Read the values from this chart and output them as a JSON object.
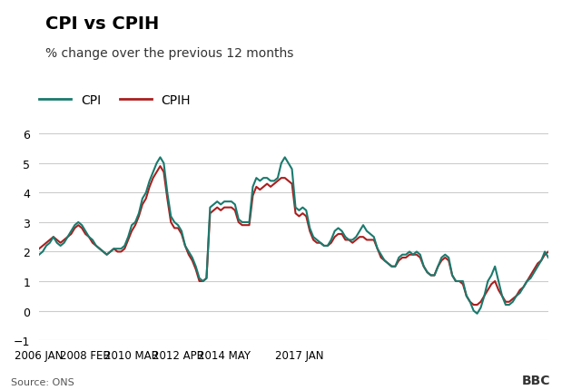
{
  "title": "CPI vs CPIH",
  "subtitle": "% change over the previous 12 months",
  "source": "Source: ONS",
  "bbc_text": "BBC",
  "cpi_color": "#1a7a6e",
  "cpih_color": "#aa1f1f",
  "background_color": "#ffffff",
  "grid_color": "#cccccc",
  "ylim": [
    -1,
    6
  ],
  "yticks": [
    -1,
    0,
    1,
    2,
    3,
    4,
    5,
    6
  ],
  "xtick_labels": [
    "2006 JAN",
    "2008 FEB",
    "2010 MAR",
    "2012 APR",
    "2014 MAY",
    "2017 JAN"
  ],
  "title_fontsize": 14,
  "subtitle_fontsize": 10,
  "legend_fontsize": 10,
  "cpi_data": [
    1.9,
    2.0,
    2.2,
    2.3,
    2.5,
    2.3,
    2.2,
    2.3,
    2.5,
    2.7,
    2.9,
    3.0,
    2.9,
    2.7,
    2.5,
    2.4,
    2.2,
    2.1,
    2.0,
    1.9,
    2.0,
    2.1,
    2.1,
    2.1,
    2.2,
    2.5,
    2.9,
    3.0,
    3.3,
    3.8,
    4.0,
    4.4,
    4.7,
    5.0,
    5.2,
    5.0,
    4.0,
    3.2,
    3.0,
    2.9,
    2.7,
    2.2,
    2.0,
    1.8,
    1.5,
    1.1,
    1.0,
    1.1,
    3.5,
    3.6,
    3.7,
    3.6,
    3.7,
    3.7,
    3.7,
    3.6,
    3.1,
    3.0,
    3.0,
    3.0,
    4.2,
    4.5,
    4.4,
    4.5,
    4.5,
    4.4,
    4.4,
    4.5,
    5.0,
    5.2,
    5.0,
    4.8,
    3.5,
    3.4,
    3.5,
    3.4,
    2.8,
    2.5,
    2.4,
    2.3,
    2.2,
    2.2,
    2.4,
    2.7,
    2.8,
    2.7,
    2.5,
    2.4,
    2.4,
    2.5,
    2.7,
    2.9,
    2.7,
    2.6,
    2.5,
    2.1,
    1.9,
    1.7,
    1.6,
    1.5,
    1.5,
    1.8,
    1.9,
    1.9,
    2.0,
    1.9,
    2.0,
    1.9,
    1.5,
    1.3,
    1.2,
    1.2,
    1.5,
    1.8,
    1.9,
    1.8,
    1.2,
    1.0,
    1.0,
    1.0,
    0.5,
    0.3,
    0.0,
    -0.1,
    0.1,
    0.5,
    1.0,
    1.2,
    1.5,
    1.0,
    0.5,
    0.2,
    0.2,
    0.3,
    0.5,
    0.6,
    0.8,
    1.0,
    1.1,
    1.3,
    1.5,
    1.7,
    2.0,
    1.8
  ],
  "cpih_data": [
    2.1,
    2.2,
    2.3,
    2.4,
    2.5,
    2.4,
    2.3,
    2.4,
    2.5,
    2.6,
    2.8,
    2.9,
    2.8,
    2.6,
    2.5,
    2.3,
    2.2,
    2.1,
    2.0,
    1.9,
    2.0,
    2.1,
    2.0,
    2.0,
    2.1,
    2.4,
    2.7,
    2.9,
    3.2,
    3.6,
    3.8,
    4.2,
    4.5,
    4.7,
    4.9,
    4.7,
    3.8,
    3.0,
    2.8,
    2.8,
    2.6,
    2.2,
    1.9,
    1.7,
    1.4,
    1.0,
    1.0,
    1.1,
    3.3,
    3.4,
    3.5,
    3.4,
    3.5,
    3.5,
    3.5,
    3.4,
    3.0,
    2.9,
    2.9,
    2.9,
    3.9,
    4.2,
    4.1,
    4.2,
    4.3,
    4.2,
    4.3,
    4.4,
    4.5,
    4.5,
    4.4,
    4.3,
    3.3,
    3.2,
    3.3,
    3.2,
    2.7,
    2.4,
    2.3,
    2.3,
    2.2,
    2.2,
    2.3,
    2.5,
    2.6,
    2.6,
    2.4,
    2.4,
    2.3,
    2.4,
    2.5,
    2.5,
    2.4,
    2.4,
    2.4,
    2.1,
    1.8,
    1.7,
    1.6,
    1.5,
    1.5,
    1.7,
    1.8,
    1.8,
    1.9,
    1.9,
    1.9,
    1.8,
    1.5,
    1.3,
    1.2,
    1.2,
    1.5,
    1.7,
    1.8,
    1.7,
    1.2,
    1.0,
    1.0,
    0.9,
    0.5,
    0.3,
    0.2,
    0.2,
    0.3,
    0.5,
    0.7,
    0.9,
    1.0,
    0.7,
    0.5,
    0.3,
    0.3,
    0.4,
    0.5,
    0.7,
    0.8,
    1.0,
    1.2,
    1.4,
    1.6,
    1.7,
    1.9,
    2.0
  ]
}
